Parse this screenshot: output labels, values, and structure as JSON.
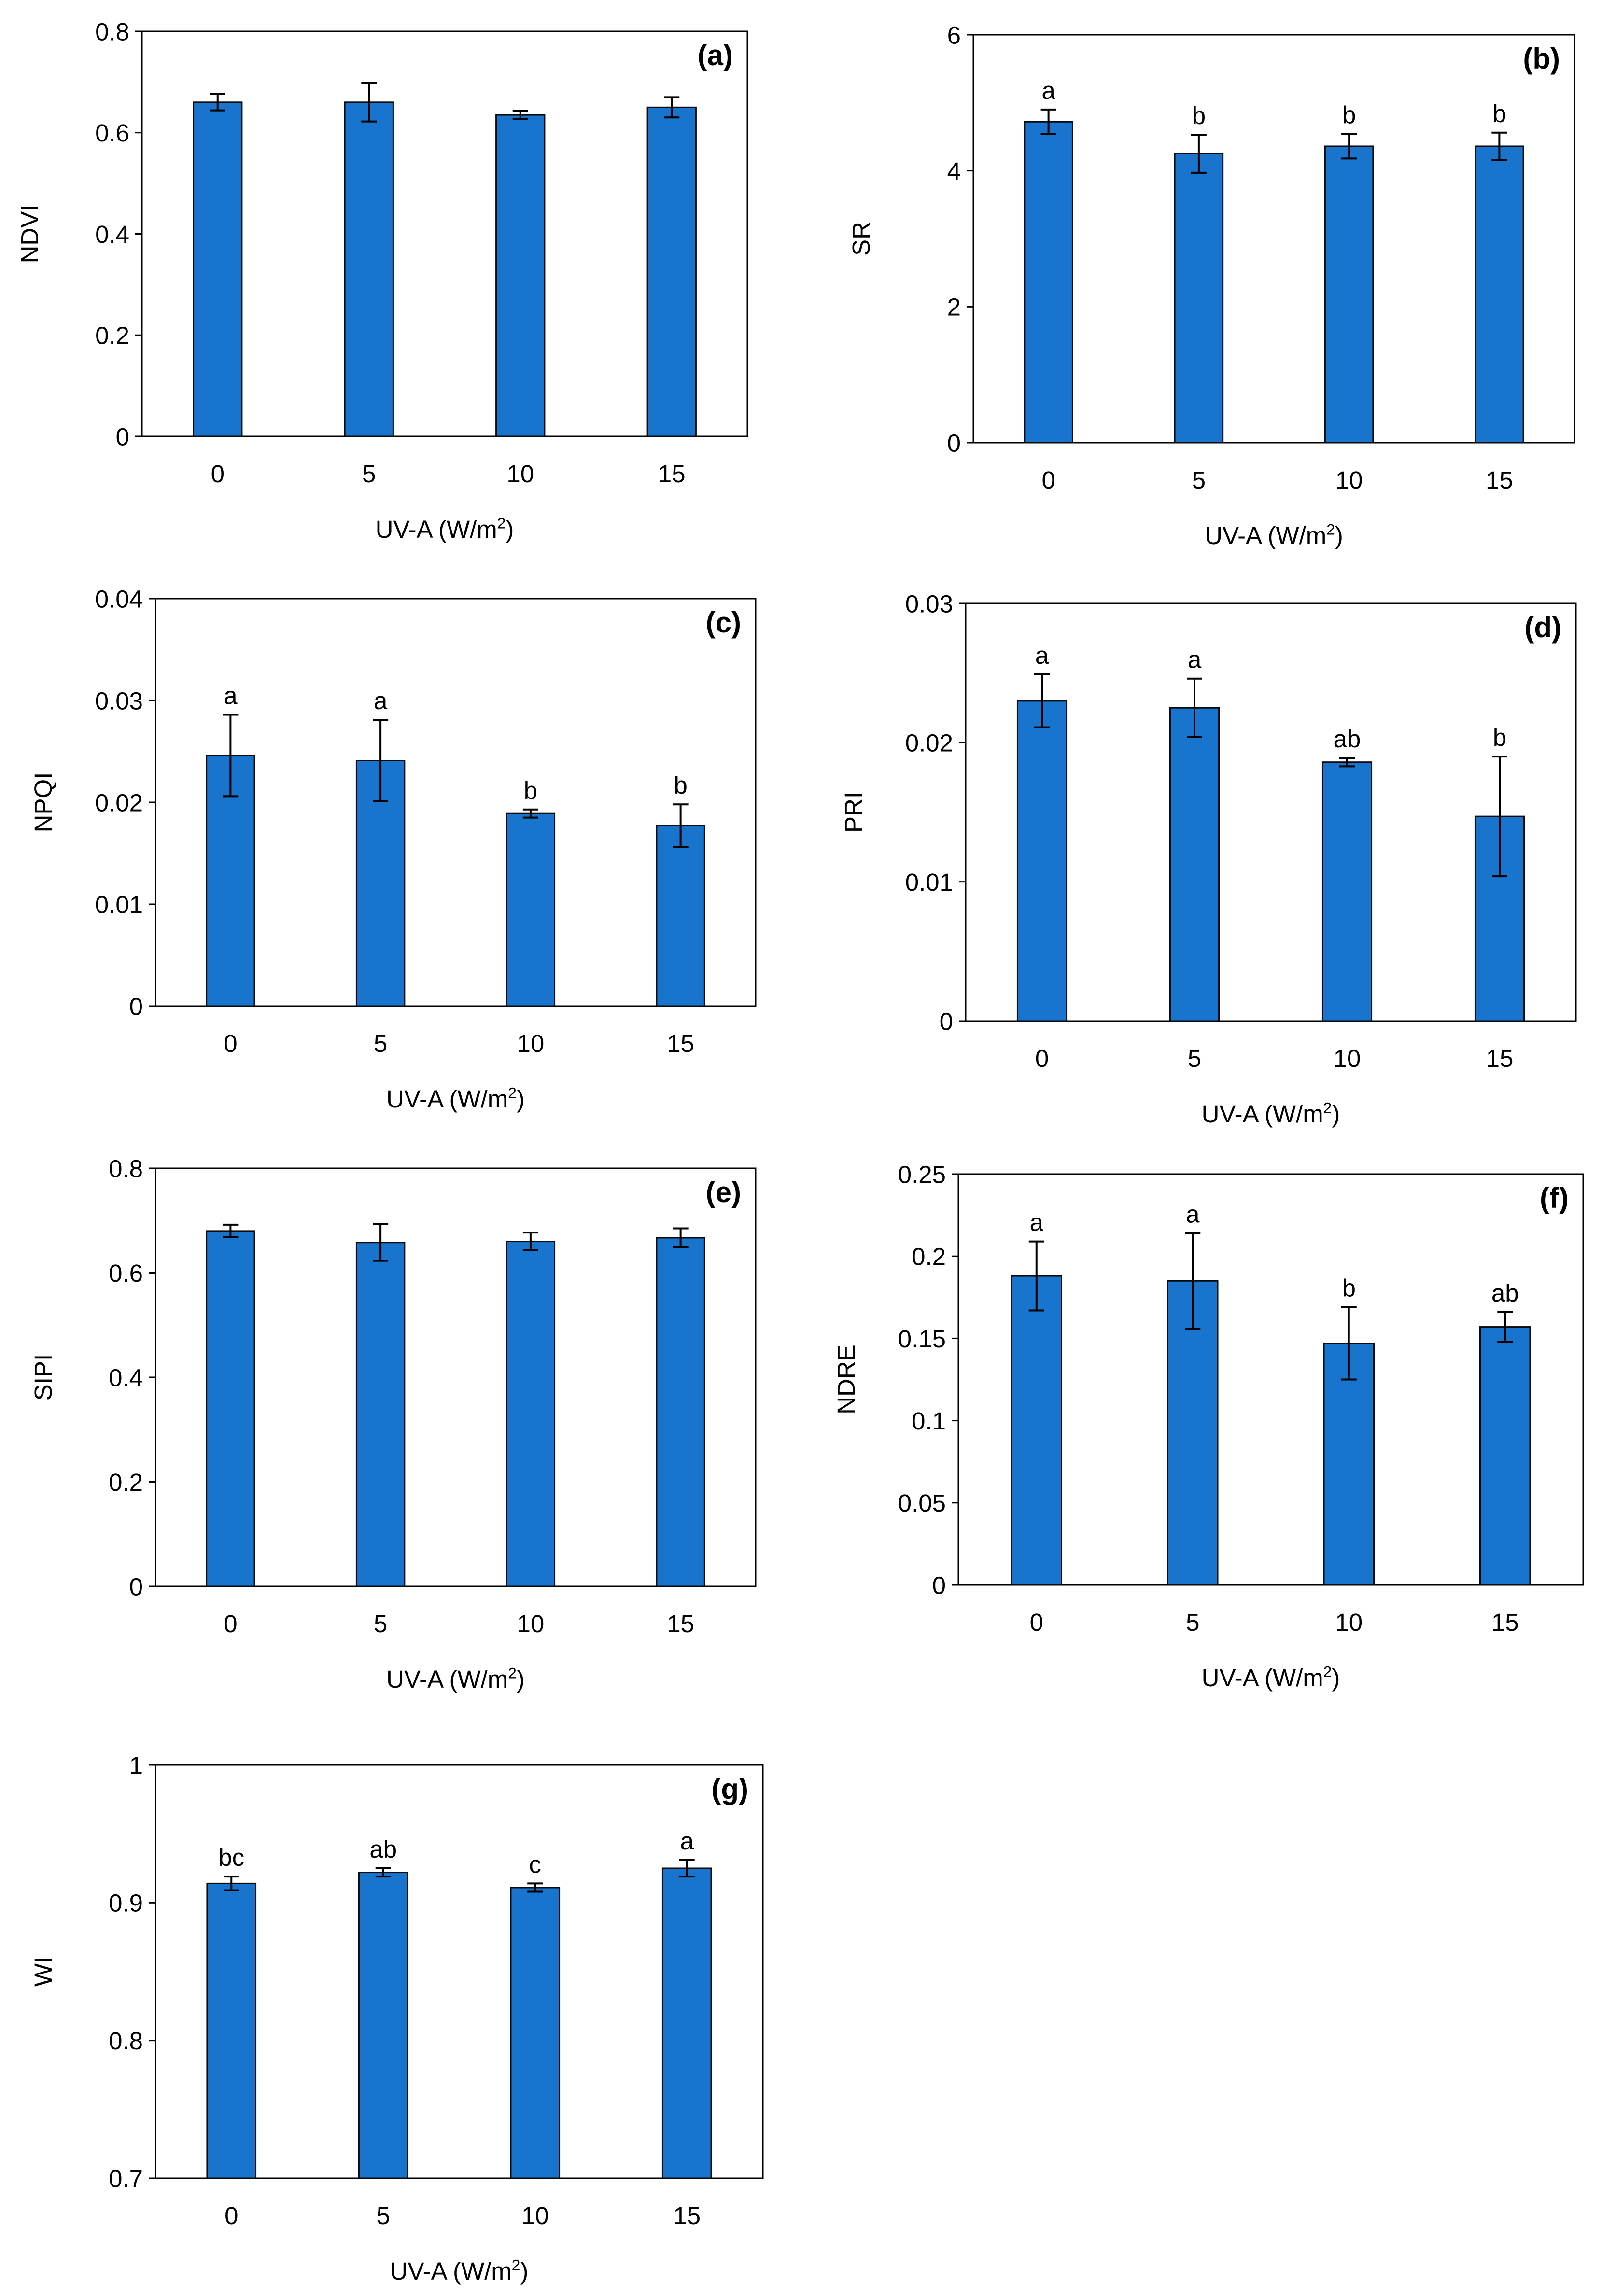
{
  "colors": {
    "bar": "#1874CD",
    "bar_stroke": "#0A0A0A",
    "axis": "#000000"
  },
  "chart_data": [
    {
      "type": "bar",
      "panel_label": "(a)",
      "ylabel": "NDVI",
      "xlabel_main": "UV-A  (W/m",
      "xlabel_sup": "2",
      "xlabel_end": ")",
      "categories": [
        "0",
        "5",
        "10",
        "15"
      ],
      "ylim": [
        0,
        0.8
      ],
      "yticks": [
        0,
        0.2,
        0.4,
        0.6,
        0.8
      ],
      "ytick_labels": [
        "0",
        "0.2",
        "0.4",
        "0.6",
        "0.8"
      ],
      "values": [
        0.66,
        0.66,
        0.635,
        0.65
      ],
      "errors": [
        0.016,
        0.038,
        0.008,
        0.02
      ],
      "letters": [
        "",
        "",
        "",
        ""
      ]
    },
    {
      "type": "bar",
      "panel_label": "(b)",
      "ylabel": "SR",
      "xlabel_main": "UV-A  (W/m",
      "xlabel_sup": "2",
      "xlabel_end": ")",
      "categories": [
        "0",
        "5",
        "10",
        "15"
      ],
      "ylim": [
        0,
        6
      ],
      "yticks": [
        0,
        2,
        4,
        6
      ],
      "ytick_labels": [
        "0",
        "2",
        "4",
        "6"
      ],
      "values": [
        4.72,
        4.25,
        4.36,
        4.36
      ],
      "errors": [
        0.18,
        0.28,
        0.18,
        0.2
      ],
      "letters": [
        "a",
        "b",
        "b",
        "b"
      ]
    },
    {
      "type": "bar",
      "panel_label": "(c)",
      "ylabel": "NPQI",
      "xlabel_main": "UV-A  (W/m",
      "xlabel_sup": "2",
      "xlabel_end": ")",
      "categories": [
        "0",
        "5",
        "10",
        "15"
      ],
      "ylim": [
        0,
        0.04
      ],
      "yticks": [
        0,
        0.01,
        0.02,
        0.03,
        0.04
      ],
      "ytick_labels": [
        "0",
        "0.01",
        "0.02",
        "0.03",
        "0.04"
      ],
      "values": [
        0.0246,
        0.0241,
        0.0189,
        0.0177
      ],
      "errors": [
        0.004,
        0.004,
        0.0004,
        0.0021
      ],
      "letters": [
        "a",
        "a",
        "b",
        "b"
      ]
    },
    {
      "type": "bar",
      "panel_label": "(d)",
      "ylabel": "PRI",
      "xlabel_main": "UV-A  (W/m",
      "xlabel_sup": "2",
      "xlabel_end": ")",
      "categories": [
        "0",
        "5",
        "10",
        "15"
      ],
      "ylim": [
        0,
        0.03
      ],
      "yticks": [
        0,
        0.01,
        0.02,
        0.03
      ],
      "ytick_labels": [
        "0",
        "0.01",
        "0.02",
        "0.03"
      ],
      "values": [
        0.023,
        0.0225,
        0.0186,
        0.0147
      ],
      "errors": [
        0.0019,
        0.0021,
        0.0003,
        0.0043
      ],
      "letters": [
        "a",
        "a",
        "ab",
        "b"
      ]
    },
    {
      "type": "bar",
      "panel_label": "(e)",
      "ylabel": "SIPI",
      "xlabel_main": "UV-A  (W/m",
      "xlabel_sup": "2",
      "xlabel_end": ")",
      "categories": [
        "0",
        "5",
        "10",
        "15"
      ],
      "ylim": [
        0,
        0.8
      ],
      "yticks": [
        0,
        0.2,
        0.4,
        0.6,
        0.8
      ],
      "ytick_labels": [
        "0",
        "0.2",
        "0.4",
        "0.6",
        "0.8"
      ],
      "values": [
        0.68,
        0.658,
        0.66,
        0.667
      ],
      "errors": [
        0.012,
        0.035,
        0.017,
        0.018
      ],
      "letters": [
        "",
        "",
        "",
        ""
      ]
    },
    {
      "type": "bar",
      "panel_label": "(f)",
      "ylabel": "NDRE",
      "xlabel_main": "UV-A  (W/m",
      "xlabel_sup": "2",
      "xlabel_end": ")",
      "categories": [
        "0",
        "5",
        "10",
        "15"
      ],
      "ylim": [
        0,
        0.25
      ],
      "yticks": [
        0,
        0.05,
        0.1,
        0.15,
        0.2,
        0.25
      ],
      "ytick_labels": [
        "0",
        "0.05",
        "0.1",
        "0.15",
        "0.2",
        "0.25"
      ],
      "values": [
        0.188,
        0.185,
        0.147,
        0.157
      ],
      "errors": [
        0.021,
        0.029,
        0.022,
        0.009
      ],
      "letters": [
        "a",
        "a",
        "b",
        "ab"
      ]
    },
    {
      "type": "bar",
      "panel_label": "(g)",
      "ylabel": "WI",
      "xlabel_main": "UV-A  (W/m",
      "xlabel_sup": "2",
      "xlabel_end": ")",
      "categories": [
        "0",
        "5",
        "10",
        "15"
      ],
      "ylim": [
        0.7,
        1
      ],
      "yticks": [
        0.7,
        0.8,
        0.9,
        1
      ],
      "ytick_labels": [
        "0.7",
        "0.8",
        "0.9",
        "1"
      ],
      "values": [
        0.914,
        0.922,
        0.911,
        0.925
      ],
      "errors": [
        0.005,
        0.003,
        0.003,
        0.006
      ],
      "letters": [
        "bc",
        "ab",
        "c",
        "a"
      ]
    }
  ]
}
